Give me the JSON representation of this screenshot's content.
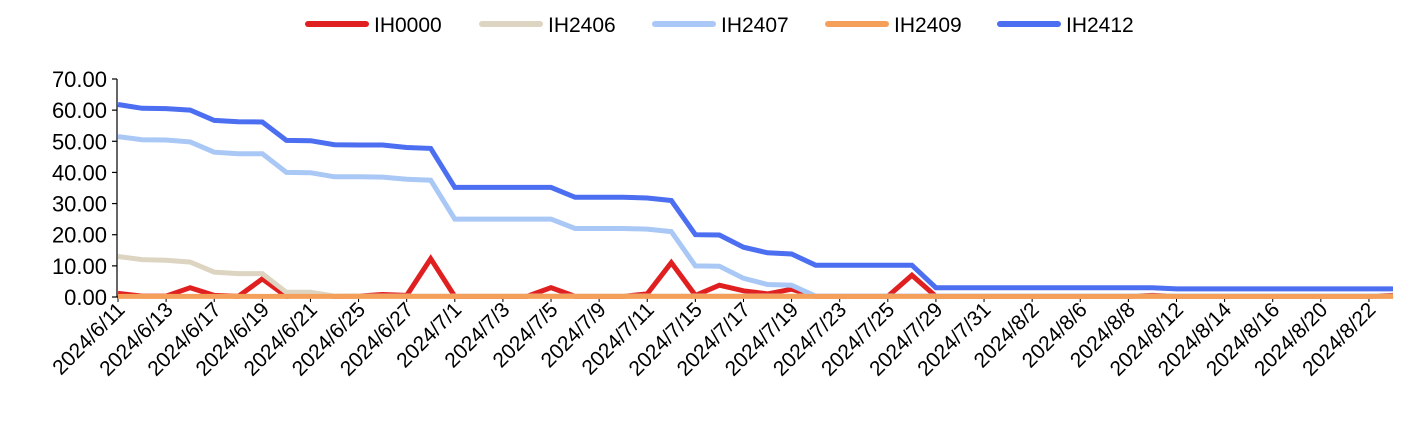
{
  "chart_data": {
    "type": "line",
    "title": "",
    "xlabel": "",
    "ylabel": "",
    "ylim": [
      0,
      70
    ],
    "yticks": [
      "0.00",
      "10.00",
      "20.00",
      "30.00",
      "40.00",
      "50.00",
      "60.00",
      "70.00"
    ],
    "grid": false,
    "legend_position": "top",
    "x": [
      "2024/6/11",
      "2024/6/12",
      "2024/6/13",
      "2024/6/14",
      "2024/6/17",
      "2024/6/18",
      "2024/6/19",
      "2024/6/20",
      "2024/6/21",
      "2024/6/24",
      "2024/6/25",
      "2024/6/26",
      "2024/6/27",
      "2024/6/28",
      "2024/7/1",
      "2024/7/2",
      "2024/7/3",
      "2024/7/4",
      "2024/7/5",
      "2024/7/8",
      "2024/7/9",
      "2024/7/10",
      "2024/7/11",
      "2024/7/12",
      "2024/7/15",
      "2024/7/16",
      "2024/7/17",
      "2024/7/18",
      "2024/7/19",
      "2024/7/22",
      "2024/7/23",
      "2024/7/24",
      "2024/7/25",
      "2024/7/26",
      "2024/7/29",
      "2024/7/30",
      "2024/7/31",
      "2024/8/1",
      "2024/8/2",
      "2024/8/5",
      "2024/8/6",
      "2024/8/7",
      "2024/8/8",
      "2024/8/9",
      "2024/8/12",
      "2024/8/13",
      "2024/8/14",
      "2024/8/15",
      "2024/8/16",
      "2024/8/19",
      "2024/8/20",
      "2024/8/21",
      "2024/8/22",
      "2024/8/23"
    ],
    "xtick_labels": [
      "2024/6/11",
      "2024/6/13",
      "2024/6/17",
      "2024/6/19",
      "2024/6/21",
      "2024/6/25",
      "2024/6/27",
      "2024/7/1",
      "2024/7/3",
      "2024/7/5",
      "2024/7/9",
      "2024/7/11",
      "2024/7/15",
      "2024/7/17",
      "2024/7/19",
      "2024/7/23",
      "2024/7/25",
      "2024/7/29",
      "2024/7/31",
      "2024/8/2",
      "2024/8/6",
      "2024/8/8",
      "2024/8/12",
      "2024/8/14",
      "2024/8/16",
      "2024/8/20",
      "2024/8/22"
    ],
    "series": [
      {
        "name": "IH0000",
        "color": "#e02020",
        "values": [
          1.2,
          0.3,
          0.3,
          3.0,
          0.5,
          0.2,
          5.8,
          0.2,
          1.0,
          0.2,
          0.3,
          0.8,
          0.5,
          12.3,
          0.2,
          0.2,
          0.2,
          0.2,
          3.0,
          0.2,
          0.2,
          0.2,
          1.0,
          11.0,
          0.5,
          3.8,
          2.0,
          1.0,
          2.5,
          0.2,
          0.2,
          0.2,
          0.2,
          7.0,
          0.2,
          0.2,
          0.2,
          0.2,
          0.2,
          0.2,
          0.2,
          0.2,
          0.2,
          0.5,
          0.2,
          0.2,
          0.2,
          0.2,
          0.2,
          0.2,
          0.2,
          0.2,
          0.2,
          0.5
        ]
      },
      {
        "name": "IH2406",
        "color": "#ddd5c2",
        "values": [
          13.0,
          12.0,
          11.8,
          11.2,
          8.0,
          7.5,
          7.5,
          1.5,
          1.5,
          0.3,
          0.3,
          0.3,
          0.3,
          0.3,
          0.3,
          0.3,
          0.3,
          0.3,
          0.3,
          0.3,
          0.3,
          0.3,
          0.3,
          0.3,
          0.3,
          0.3,
          0.3,
          0.3,
          0.3,
          0.3,
          0.3,
          0.3,
          0.3,
          0.3,
          0.3,
          0.3,
          0.3,
          0.3,
          0.3,
          0.3,
          0.3,
          0.3,
          0.3,
          0.3,
          0.3,
          0.3,
          0.3,
          0.3,
          0.3,
          0.3,
          0.3,
          0.3,
          0.3,
          0.3
        ]
      },
      {
        "name": "IH2407",
        "color": "#a9c8f5",
        "values": [
          51.5,
          50.5,
          50.4,
          49.8,
          46.5,
          46.0,
          46.0,
          40.0,
          39.9,
          38.6,
          38.6,
          38.5,
          37.8,
          37.5,
          25.0,
          25.0,
          25.0,
          25.0,
          25.0,
          22.0,
          22.0,
          22.0,
          21.8,
          21.0,
          10.0,
          9.9,
          6.0,
          4.0,
          3.8,
          0.3,
          0.3,
          0.3,
          0.3,
          0.3,
          0.3,
          0.3,
          0.3,
          0.3,
          0.3,
          0.3,
          0.3,
          0.3,
          0.3,
          0.3,
          0.3,
          0.3,
          0.3,
          0.3,
          0.3,
          0.3,
          0.3,
          0.3,
          0.3,
          0.3
        ]
      },
      {
        "name": "IH2409",
        "color": "#f5a05a",
        "values": [
          0.2,
          0.2,
          0.2,
          0.2,
          0.2,
          0.2,
          0.2,
          0.2,
          0.2,
          0.2,
          0.2,
          0.2,
          0.2,
          0.2,
          0.2,
          0.2,
          0.2,
          0.2,
          0.2,
          0.2,
          0.2,
          0.2,
          0.2,
          0.2,
          0.2,
          0.2,
          0.2,
          0.2,
          0.2,
          0.2,
          0.2,
          0.2,
          0.2,
          0.2,
          0.2,
          0.2,
          0.2,
          0.2,
          0.2,
          0.2,
          0.2,
          0.2,
          0.2,
          0.2,
          0.2,
          0.2,
          0.2,
          0.2,
          0.2,
          0.2,
          0.2,
          0.2,
          0.2,
          0.2
        ]
      },
      {
        "name": "IH2412",
        "color": "#4c6ef0",
        "values": [
          61.8,
          60.6,
          60.5,
          60.0,
          56.7,
          56.3,
          56.2,
          50.3,
          50.2,
          48.9,
          48.8,
          48.8,
          48.0,
          47.7,
          35.2,
          35.2,
          35.2,
          35.2,
          35.2,
          32.0,
          32.0,
          32.0,
          31.8,
          31.0,
          20.0,
          19.9,
          16.0,
          14.2,
          13.8,
          10.2,
          10.2,
          10.2,
          10.2,
          10.2,
          3.0,
          3.0,
          3.0,
          3.0,
          3.0,
          3.0,
          3.0,
          3.0,
          3.0,
          3.0,
          2.6,
          2.6,
          2.6,
          2.6,
          2.6,
          2.6,
          2.6,
          2.6,
          2.6,
          2.6
        ]
      }
    ]
  }
}
